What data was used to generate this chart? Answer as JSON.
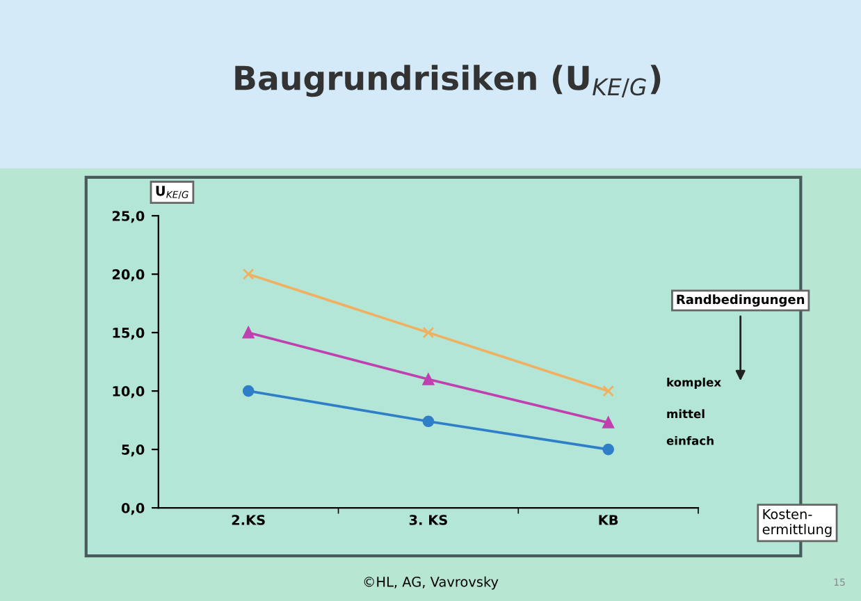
{
  "chart_data": {
    "type": "line",
    "title": "Baugrundrisiken (U$_{KE/G}$)",
    "ylabel": "U$_{KE/G}$",
    "xlabel": "Kosten-\nermittlung",
    "legend_title": "Randbedingungen",
    "categories": [
      "2.KS",
      "3. KS",
      "KB"
    ],
    "series": [
      {
        "name": "komplex",
        "color": "#f0b060",
        "values": [
          20,
          15,
          10
        ],
        "marker": "cross"
      },
      {
        "name": "mittel",
        "color": "#c040b0",
        "values": [
          15,
          11,
          7.3
        ],
        "marker": "triangle"
      },
      {
        "name": "einfach",
        "color": "#2f7fc8",
        "values": [
          10,
          7.4,
          5
        ],
        "marker": "circle"
      }
    ],
    "ylim": [
      0,
      25
    ],
    "yticks": [
      {
        "value": 0,
        "label": "0,0"
      },
      {
        "value": 5,
        "label": "5,0"
      },
      {
        "value": 10,
        "label": "10,0"
      },
      {
        "value": 15,
        "label": "15,0"
      },
      {
        "value": 20,
        "label": "20,0"
      },
      {
        "value": 25,
        "label": "25,0"
      }
    ],
    "grid": false,
    "legend": "right",
    "line_style": "solid",
    "annotations": [
      "©HL, AG, Vavrovsky",
      "15"
    ]
  }
}
